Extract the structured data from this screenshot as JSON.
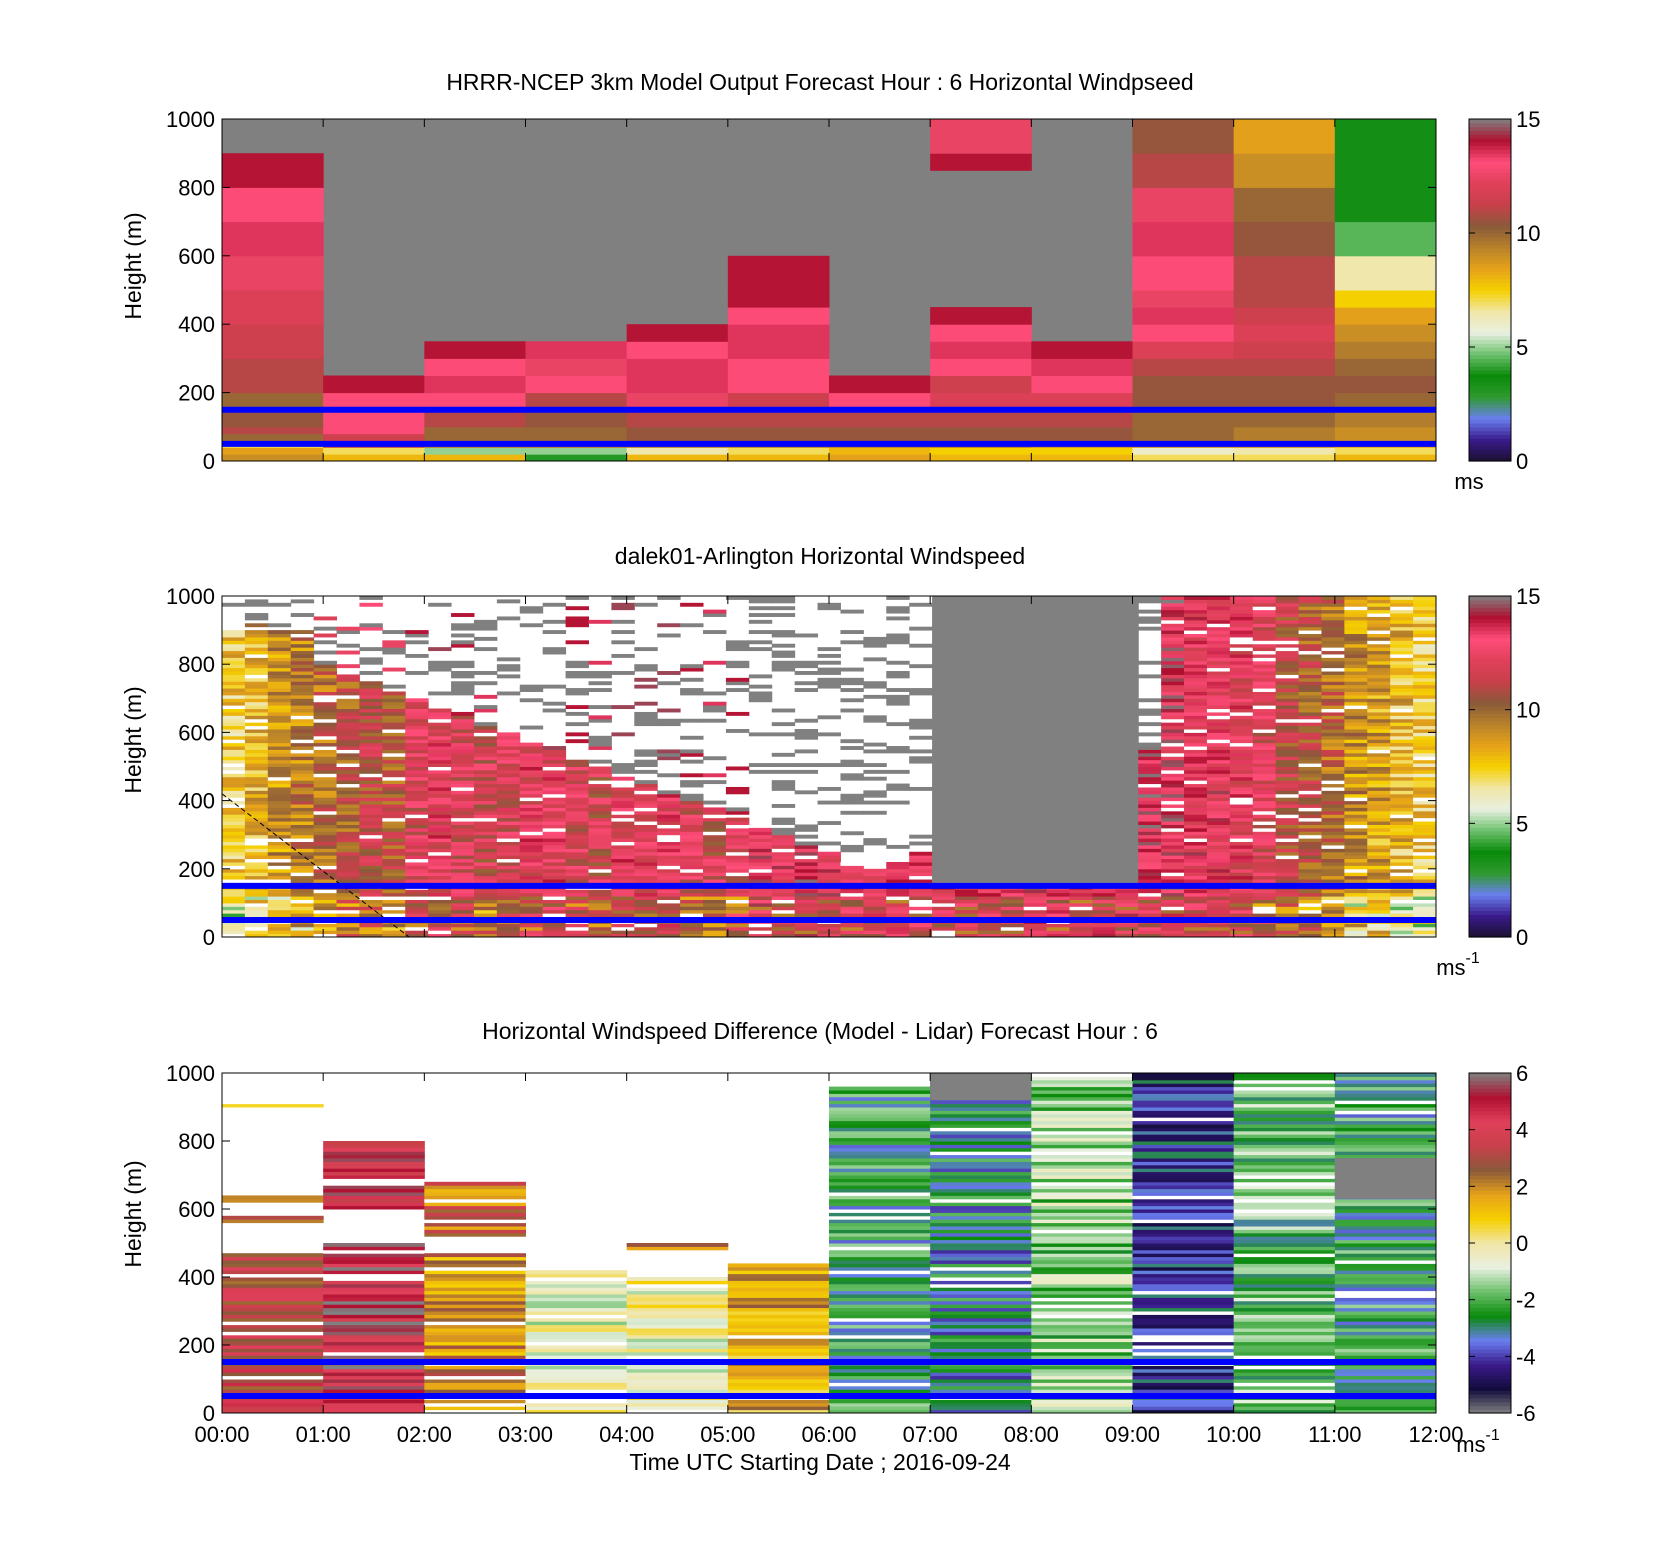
{
  "colors": {
    "windspeed_scale": [
      "#1a1030",
      "#3a1a8a",
      "#6a7ff0",
      "#2f9a2f",
      "#0a8a0a",
      "#6cc06c",
      "#e8f0e0",
      "#f1e6a8",
      "#f5d000",
      "#e6a21a",
      "#b8822a",
      "#8a5a3a",
      "#c8404a",
      "#e0405a",
      "#ff4d7a",
      "#b01030",
      "#808080"
    ],
    "difference_scale": [
      "#808080",
      "#120c3c",
      "#3a1a8a",
      "#6a7ff0",
      "#0a8a0a",
      "#6cc06c",
      "#e8f0e0",
      "#f1e6a8",
      "#f5d000",
      "#e6a21a",
      "#8a5a3a",
      "#c8404a",
      "#e0405a",
      "#b01030",
      "#808080"
    ],
    "reference_lines": "#0000ff",
    "missing": "#808080"
  },
  "chart_data": [
    {
      "type": "heatmap",
      "title": "HRRR-NCEP 3km Model Output   Forecast Hour : 6 Horizontal Windpseed",
      "xlabel": "",
      "ylabel": "Height (m)",
      "yticks": [
        "0",
        "200",
        "400",
        "600",
        "800",
        "1000"
      ],
      "ylim": [
        0,
        1000
      ],
      "colorbar": {
        "ticks": [
          "0",
          "5",
          "10",
          "15"
        ],
        "unit": "ms",
        "unit_sup": "",
        "range": [
          0,
          15
        ]
      },
      "reference_heights_m": [
        50,
        150
      ],
      "hours": [
        "00:00",
        "01:00",
        "02:00",
        "03:00",
        "04:00",
        "05:00",
        "06:00",
        "07:00",
        "08:00",
        "09:00",
        "10:00",
        "11:00"
      ],
      "model_columns": [
        {
          "top": 900,
          "cells": [
            [
              0,
              20,
              9
            ],
            [
              20,
              40,
              8.5
            ],
            [
              40,
              60,
              7
            ],
            [
              60,
              80,
              10
            ],
            [
              80,
              100,
              11
            ],
            [
              100,
              150,
              10.5
            ],
            [
              150,
              200,
              10
            ],
            [
              200,
              300,
              11
            ],
            [
              300,
              400,
              11.5
            ],
            [
              400,
              500,
              12
            ],
            [
              500,
              600,
              12.5
            ],
            [
              600,
              700,
              13.5
            ],
            [
              700,
              800,
              13
            ],
            [
              800,
              900,
              14
            ]
          ]
        },
        {
          "top": 250,
          "cells": [
            [
              0,
              20,
              8
            ],
            [
              20,
              40,
              7
            ],
            [
              40,
              60,
              11
            ],
            [
              60,
              80,
              11.5
            ],
            [
              80,
              150,
              13
            ],
            [
              150,
              200,
              13
            ],
            [
              200,
              250,
              14
            ]
          ]
        },
        {
          "top": 350,
          "cells": [
            [
              0,
              20,
              8
            ],
            [
              20,
              40,
              5
            ],
            [
              40,
              60,
              9.5
            ],
            [
              60,
              100,
              10
            ],
            [
              100,
              150,
              11
            ],
            [
              150,
              200,
              13
            ],
            [
              200,
              250,
              13.5
            ],
            [
              250,
              300,
              13
            ],
            [
              300,
              350,
              14
            ]
          ]
        },
        {
          "top": 350,
          "cells": [
            [
              0,
              20,
              4
            ],
            [
              20,
              40,
              5
            ],
            [
              40,
              60,
              9.5
            ],
            [
              60,
              100,
              10
            ],
            [
              100,
              150,
              10.5
            ],
            [
              150,
              200,
              11
            ],
            [
              200,
              250,
              13
            ],
            [
              250,
              300,
              12.5
            ],
            [
              300,
              350,
              13.5
            ]
          ]
        },
        {
          "top": 400,
          "cells": [
            [
              0,
              20,
              8
            ],
            [
              20,
              40,
              6.5
            ],
            [
              40,
              60,
              9.5
            ],
            [
              60,
              100,
              10.5
            ],
            [
              100,
              150,
              11
            ],
            [
              150,
              200,
              12.5
            ],
            [
              200,
              300,
              13.5
            ],
            [
              300,
              350,
              13
            ],
            [
              350,
              400,
              14
            ]
          ]
        },
        {
          "top": 600,
          "cells": [
            [
              0,
              20,
              8
            ],
            [
              20,
              40,
              7
            ],
            [
              40,
              60,
              9.5
            ],
            [
              60,
              100,
              10.5
            ],
            [
              100,
              150,
              11
            ],
            [
              150,
              200,
              11.5
            ],
            [
              200,
              300,
              13
            ],
            [
              300,
              400,
              13.5
            ],
            [
              400,
              450,
              13
            ],
            [
              450,
              500,
              14
            ],
            [
              500,
              600,
              14
            ]
          ]
        },
        {
          "top": 250,
          "cells": [
            [
              0,
              20,
              8.5
            ],
            [
              20,
              40,
              8
            ],
            [
              40,
              60,
              9.5
            ],
            [
              60,
              100,
              10.5
            ],
            [
              100,
              150,
              11
            ],
            [
              150,
              200,
              13
            ],
            [
              200,
              250,
              14
            ]
          ]
        },
        {
          "top": 450,
          "cells": [
            [
              0,
              20,
              8
            ],
            [
              20,
              40,
              7.5
            ],
            [
              40,
              60,
              9.5
            ],
            [
              60,
              100,
              10.5
            ],
            [
              100,
              150,
              11
            ],
            [
              150,
              200,
              12
            ],
            [
              200,
              250,
              11.5
            ],
            [
              250,
              300,
              13
            ],
            [
              300,
              350,
              13.5
            ],
            [
              350,
              400,
              13
            ],
            [
              400,
              450,
              14
            ],
            [
              850,
              900,
              14
            ],
            [
              900,
              1000,
              12.5
            ]
          ]
        },
        {
          "top": 350,
          "cells": [
            [
              0,
              20,
              8
            ],
            [
              20,
              40,
              7.5
            ],
            [
              40,
              60,
              9
            ],
            [
              60,
              100,
              10.5
            ],
            [
              100,
              150,
              11
            ],
            [
              150,
              200,
              12
            ],
            [
              200,
              250,
              13
            ],
            [
              250,
              300,
              13.5
            ],
            [
              300,
              350,
              14
            ]
          ]
        },
        {
          "top": 1000,
          "cells": [
            [
              0,
              20,
              7
            ],
            [
              20,
              40,
              6
            ],
            [
              40,
              60,
              9
            ],
            [
              60,
              100,
              10
            ],
            [
              100,
              150,
              10
            ],
            [
              150,
              200,
              10.5
            ],
            [
              200,
              250,
              10.5
            ],
            [
              250,
              300,
              11
            ],
            [
              300,
              350,
              12
            ],
            [
              350,
              400,
              13
            ],
            [
              400,
              450,
              13.5
            ],
            [
              450,
              500,
              12.5
            ],
            [
              500,
              600,
              13
            ],
            [
              600,
              700,
              13.5
            ],
            [
              700,
              800,
              12.5
            ],
            [
              800,
              900,
              11
            ],
            [
              900,
              1000,
              10.5
            ]
          ]
        },
        {
          "top": 1000,
          "cells": [
            [
              0,
              20,
              7
            ],
            [
              20,
              40,
              6.5
            ],
            [
              40,
              60,
              9
            ],
            [
              60,
              100,
              9.5
            ],
            [
              100,
              150,
              10
            ],
            [
              150,
              200,
              10.5
            ],
            [
              200,
              250,
              10.5
            ],
            [
              250,
              300,
              11
            ],
            [
              300,
              350,
              11.5
            ],
            [
              350,
              400,
              12
            ],
            [
              400,
              450,
              11.5
            ],
            [
              450,
              500,
              11
            ],
            [
              500,
              600,
              11
            ],
            [
              600,
              700,
              10.5
            ],
            [
              700,
              800,
              10
            ],
            [
              800,
              900,
              9
            ],
            [
              900,
              1000,
              8.5
            ]
          ]
        },
        {
          "top": 1000,
          "cells": [
            [
              0,
              20,
              8
            ],
            [
              20,
              40,
              7
            ],
            [
              40,
              60,
              8.5
            ],
            [
              60,
              100,
              9
            ],
            [
              100,
              150,
              9.5
            ],
            [
              150,
              200,
              10
            ],
            [
              200,
              250,
              10.5
            ],
            [
              250,
              300,
              10
            ],
            [
              300,
              350,
              9.5
            ],
            [
              350,
              400,
              9
            ],
            [
              400,
              450,
              8.5
            ],
            [
              450,
              500,
              7.5
            ],
            [
              500,
              600,
              6.5
            ],
            [
              600,
              700,
              4.5
            ],
            [
              700,
              800,
              3.5
            ],
            [
              800,
              900,
              3.5
            ],
            [
              900,
              1000,
              3.5
            ]
          ]
        }
      ]
    },
    {
      "type": "heatmap",
      "title": "dalek01-Arlington  Horizontal Windspeed",
      "xlabel": "",
      "ylabel": "Height (m)",
      "yticks": [
        "0",
        "200",
        "400",
        "600",
        "800",
        "1000"
      ],
      "ylim": [
        0,
        1000
      ],
      "colorbar": {
        "ticks": [
          "0",
          "5",
          "10",
          "15"
        ],
        "unit": "ms",
        "unit_sup": "-1",
        "range": [
          0,
          15
        ]
      },
      "reference_heights_m": [
        50,
        150
      ],
      "missing_region": {
        "time_range_h": [
          7.0,
          9.1
        ],
        "height_range_m": [
          150,
          1000
        ]
      },
      "lidar_column_means_ms": [
        7.5,
        8,
        9,
        9.5,
        10,
        10.5,
        11,
        10.5,
        12,
        12.5,
        12,
        11.5,
        12,
        12.5,
        12.5,
        12,
        11.5,
        12.5,
        12.5,
        12.5,
        12,
        11.5,
        12,
        13,
        13,
        13.5,
        13,
        13,
        13,
        13.5,
        13,
        13,
        13,
        13,
        13,
        13.5,
        13.5,
        13,
        13.5,
        13.5,
        13.5,
        13.5,
        13,
        13,
        12.5,
        12,
        11,
        10.5,
        10,
        9,
        8.5,
        8,
        7.5
      ]
    },
    {
      "type": "heatmap",
      "title": "Horizontal Windspeed Difference (Model - Lidar) Forecast Hour : 6",
      "xlabel": "Time UTC  Starting Date ; 2016-09-24",
      "ylabel": "Height (m)",
      "xticks": [
        "00:00",
        "01:00",
        "02:00",
        "03:00",
        "04:00",
        "05:00",
        "06:00",
        "07:00",
        "08:00",
        "09:00",
        "10:00",
        "11:00",
        "12:00"
      ],
      "yticks": [
        "0",
        "200",
        "400",
        "600",
        "800",
        "1000"
      ],
      "ylim": [
        0,
        1000
      ],
      "colorbar": {
        "ticks": [
          "-6",
          "-4",
          "-2",
          "0",
          "2",
          "4",
          "6"
        ],
        "unit": "ms",
        "unit_sup": "-1",
        "range": [
          -6,
          6
        ]
      },
      "reference_heights_m": [
        50,
        150
      ],
      "difference_columns": [
        {
          "bands": [
            [
              0,
              470,
              3.5
            ],
            [
              560,
              580,
              3
            ],
            [
              620,
              640,
              3
            ],
            [
              900,
              920,
              1
            ]
          ]
        },
        {
          "bands": [
            [
              0,
              500,
              5
            ],
            [
              600,
              800,
              4.5
            ]
          ]
        },
        {
          "bands": [
            [
              0,
              470,
              2
            ],
            [
              520,
              680,
              2.5
            ]
          ]
        },
        {
          "bands": [
            [
              0,
              420,
              -0.5
            ]
          ]
        },
        {
          "bands": [
            [
              0,
              400,
              -0.3
            ],
            [
              480,
              500,
              2.5
            ]
          ]
        },
        {
          "bands": [
            [
              0,
              440,
              1.5
            ]
          ]
        },
        {
          "bands": [
            [
              0,
              960,
              -2.5
            ]
          ]
        },
        {
          "bands": [
            [
              0,
              1000,
              -3
            ]
          ]
        },
        {
          "bands": [
            [
              0,
              1000,
              -1.5
            ]
          ]
        },
        {
          "bands": [
            [
              0,
              1000,
              -4
            ]
          ]
        },
        {
          "bands": [
            [
              0,
              1000,
              -2
            ]
          ]
        },
        {
          "bands": [
            [
              0,
              1000,
              -2.5
            ]
          ]
        }
      ]
    }
  ]
}
